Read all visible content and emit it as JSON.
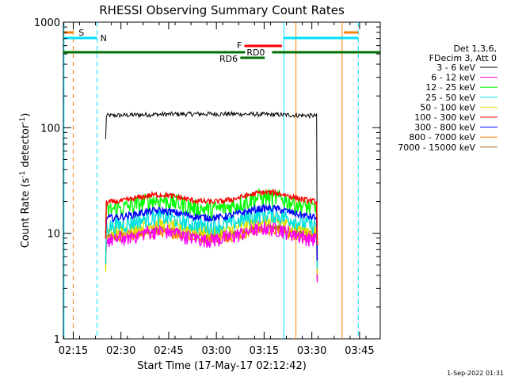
{
  "chart_data": {
    "type": "line",
    "title": "RHESSI Observing Summary Count Rates",
    "xlabel": "Start Time (17-May-17 02:12:42)",
    "ylabel_main": "Count Rate (s",
    "ylabel_sup1": "-1",
    "ylabel_mid": " detector",
    "ylabel_sup2": "-1",
    "ylabel_end": ")",
    "y_scale": "log",
    "ylim": [
      1,
      1000
    ],
    "xlim_minutes_after_0212": [
      -0.1,
      99.5
    ],
    "x_ticks": [
      {
        "label": "02:15",
        "min": 3
      },
      {
        "label": "02:30",
        "min": 18
      },
      {
        "label": "02:45",
        "min": 33
      },
      {
        "label": "03:00",
        "min": 48
      },
      {
        "label": "03:15",
        "min": 63
      },
      {
        "label": "03:30",
        "min": 78
      },
      {
        "label": "03:45",
        "min": 93
      }
    ],
    "y_ticks": [
      {
        "label": "1",
        "v": 1
      },
      {
        "label": "10",
        "v": 10
      },
      {
        "label": "100",
        "v": 100
      },
      {
        "label": "1000",
        "v": 1000
      }
    ],
    "legend_header": [
      "Det 1,3,6,",
      "FDecim 3, Att 0"
    ],
    "series": [
      {
        "name": "3 - 6 keV",
        "color": "#000000",
        "base": 130,
        "amp": 0.03,
        "noise": 0.05
      },
      {
        "name": "6 - 12 keV",
        "color": "#ff00ff",
        "base": 8.6,
        "amp": 0.28,
        "noise": 0.18
      },
      {
        "name": "12 - 25 keV",
        "color": "#00ff00",
        "base": 16.5,
        "amp": 0.3,
        "noise": 0.2
      },
      {
        "name": "25 - 50 keV",
        "color": "#00e0e0",
        "base": 11.5,
        "amp": 0.28,
        "noise": 0.18
      },
      {
        "name": "50 - 100 keV",
        "color": "#e0e000",
        "base": 10.2,
        "amp": 0.25,
        "noise": 0.12
      },
      {
        "name": "100 - 300 keV",
        "color": "#ff0000",
        "base": 19.5,
        "amp": 0.22,
        "noise": 0.06
      },
      {
        "name": "300 - 800 keV",
        "color": "#0000ff",
        "base": 13.8,
        "amp": 0.22,
        "noise": 0.08
      },
      {
        "name": "800 - 7000 keV",
        "color": "#ff8000",
        "base": 8.7,
        "amp": 0.2,
        "noise": 0.1
      },
      {
        "name": "7000 - 15000 keV",
        "color": "#a07000",
        "base": 9.3,
        "amp": 0.2,
        "noise": 0.08
      }
    ],
    "data_range_minutes": [
      13.2,
      79.5
    ],
    "bar_labels": {
      "s": "S",
      "n": "N",
      "f": "F",
      "rd0": "RD0",
      "rd6": "RD6"
    }
  },
  "footer_date": "1-Sep-2022 01:31"
}
